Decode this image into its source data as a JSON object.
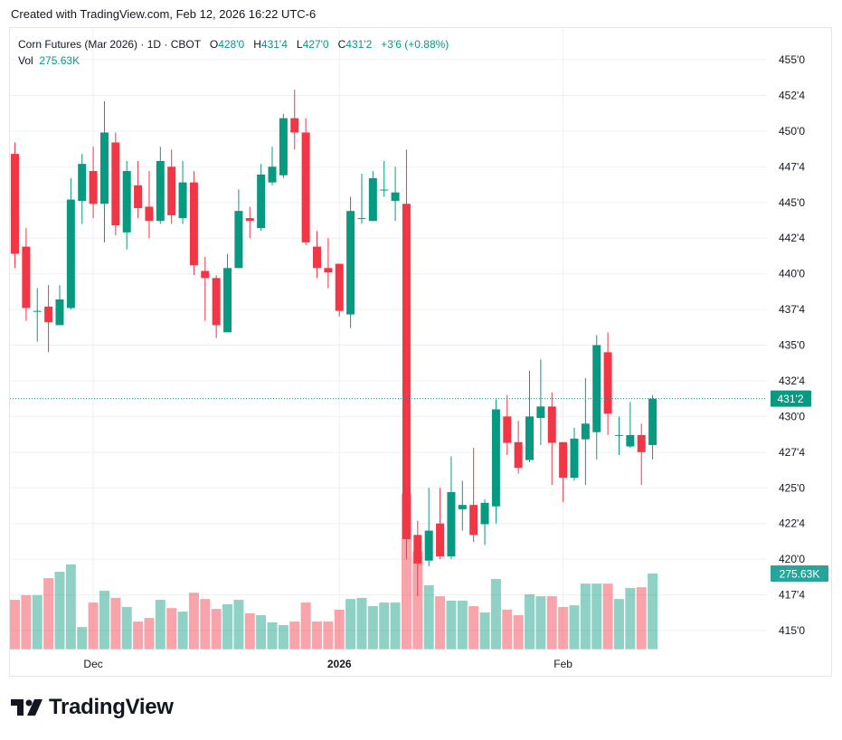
{
  "header": {
    "created": "Created with TradingView.com, Feb 12, 2026 16:22 UTC-6"
  },
  "legend": {
    "symbol": "Corn Futures (Mar 2026) · 1D · CBOT",
    "o_label": "O",
    "o": "428'0",
    "h_label": "H",
    "h": "431'4",
    "l_label": "L",
    "l": "427'0",
    "c_label": "C",
    "c": "431'2",
    "change": "+3'6 (+0.88%)",
    "vol_label": "Vol",
    "vol": "275.63K"
  },
  "logo": {
    "text": "TradingView"
  },
  "colors": {
    "up": "#089981",
    "down": "#F23645",
    "vol_up": "rgba(8,153,129,0.45)",
    "vol_down": "rgba(242,54,69,0.45)",
    "grid": "#f0f3fa"
  },
  "chart_data": {
    "type": "candlestick",
    "title": "Corn Futures (Mar 2026) · 1D · CBOT",
    "ylim": [
      415,
      455
    ],
    "y_ticks": [
      {
        "value": 455,
        "label": "455'0"
      },
      {
        "value": 452.5,
        "label": "452'4"
      },
      {
        "value": 450,
        "label": "450'0"
      },
      {
        "value": 447.5,
        "label": "447'4"
      },
      {
        "value": 445,
        "label": "445'0"
      },
      {
        "value": 442.5,
        "label": "442'4"
      },
      {
        "value": 440,
        "label": "440'0"
      },
      {
        "value": 437.5,
        "label": "437'4"
      },
      {
        "value": 435,
        "label": "435'0"
      },
      {
        "value": 432.5,
        "label": "432'4"
      },
      {
        "value": 430,
        "label": "430'0"
      },
      {
        "value": 427.5,
        "label": "427'4"
      },
      {
        "value": 425,
        "label": "425'0"
      },
      {
        "value": 422.5,
        "label": "422'4"
      },
      {
        "value": 420,
        "label": "420'0"
      },
      {
        "value": 417.5,
        "label": "417'4"
      },
      {
        "value": 415,
        "label": "415'0"
      }
    ],
    "x_ticks": [
      {
        "index": 7,
        "label": "Dec",
        "bold": false
      },
      {
        "index": 29,
        "label": "2026",
        "bold": true
      },
      {
        "index": 49,
        "label": "Feb",
        "bold": false
      }
    ],
    "last_price": {
      "value": 431.25,
      "label": "431'2"
    },
    "last_volume": {
      "value": 275.63,
      "label": "275.63K"
    },
    "volume_unit": "K",
    "candles": [
      [
        448.4,
        449.2,
        440.4,
        441.4,
        180
      ],
      [
        441.9,
        443.2,
        436.7,
        437.6,
        197
      ],
      [
        437.4,
        439.0,
        435.25,
        437.4,
        197
      ],
      [
        437.7,
        439.2,
        434.5,
        436.6,
        259
      ],
      [
        436.4,
        439.2,
        436.4,
        438.2,
        282
      ],
      [
        437.6,
        446.7,
        437.5,
        445.2,
        309
      ],
      [
        445.1,
        448.4,
        443.5,
        447.7,
        81
      ],
      [
        447.2,
        448.9,
        443.9,
        444.9,
        170
      ],
      [
        444.9,
        452.1,
        442.2,
        449.9,
        213
      ],
      [
        449.2,
        449.9,
        442.7,
        443.4,
        187
      ],
      [
        442.9,
        447.9,
        441.7,
        447.2,
        154
      ],
      [
        446.2,
        447.9,
        443.9,
        444.6,
        101
      ],
      [
        444.7,
        447.2,
        442.5,
        443.7,
        114
      ],
      [
        443.7,
        448.9,
        443.5,
        447.9,
        180
      ],
      [
        447.5,
        448.7,
        443.5,
        444.1,
        150
      ],
      [
        443.9,
        447.9,
        443.5,
        446.4,
        137
      ],
      [
        446.4,
        447.2,
        439.9,
        440.6,
        206
      ],
      [
        440.2,
        441.2,
        436.7,
        439.7,
        183
      ],
      [
        439.7,
        439.9,
        435.5,
        436.4,
        147
      ],
      [
        435.9,
        441.4,
        435.9,
        440.4,
        164
      ],
      [
        440.4,
        445.9,
        440.4,
        444.4,
        180
      ],
      [
        443.9,
        444.7,
        442.5,
        443.7,
        131
      ],
      [
        443.2,
        447.7,
        443.0,
        446.95,
        124
      ],
      [
        446.4,
        448.9,
        446.2,
        447.5,
        98
      ],
      [
        446.9,
        451.2,
        446.7,
        450.9,
        88
      ],
      [
        450.9,
        452.9,
        448.7,
        449.9,
        101
      ],
      [
        449.9,
        450.9,
        442.0,
        442.2,
        170
      ],
      [
        441.9,
        443.0,
        439.7,
        440.4,
        101
      ],
      [
        440.4,
        442.5,
        439.0,
        440.1,
        101
      ],
      [
        440.7,
        440.7,
        437.0,
        437.4,
        144
      ],
      [
        437.15,
        445.4,
        436.2,
        444.4,
        183
      ],
      [
        443.9,
        447.0,
        443.5,
        443.9,
        187
      ],
      [
        443.7,
        447.2,
        443.7,
        446.7,
        157
      ],
      [
        445.9,
        447.9,
        445.4,
        445.9,
        170
      ],
      [
        445.1,
        447.5,
        443.7,
        445.7,
        170
      ],
      [
        444.9,
        448.7,
        420.0,
        421.4,
        566
      ],
      [
        421.7,
        422.7,
        417.4,
        419.7,
        356
      ],
      [
        419.9,
        425.0,
        419.5,
        422.0,
        233
      ],
      [
        422.5,
        425.0,
        420.0,
        420.2,
        193
      ],
      [
        420.2,
        427.2,
        420.0,
        424.7,
        177
      ],
      [
        423.5,
        425.5,
        422.0,
        423.8,
        177
      ],
      [
        423.8,
        427.8,
        421.2,
        421.7,
        157
      ],
      [
        422.45,
        424.2,
        421.0,
        423.95,
        134
      ],
      [
        423.7,
        431.2,
        422.5,
        430.5,
        256
      ],
      [
        430.0,
        431.5,
        427.3,
        428.15,
        144
      ],
      [
        428.2,
        429.7,
        426.0,
        426.4,
        124
      ],
      [
        426.95,
        433.2,
        426.8,
        430.0,
        200
      ],
      [
        429.9,
        434.0,
        428.0,
        430.7,
        193
      ],
      [
        430.7,
        431.7,
        425.2,
        428.15,
        193
      ],
      [
        428.2,
        428.2,
        424.0,
        425.7,
        154
      ],
      [
        425.7,
        429.2,
        425.5,
        428.45,
        160
      ],
      [
        428.4,
        432.7,
        425.2,
        429.5,
        239
      ],
      [
        428.9,
        435.7,
        427.0,
        435.0,
        239
      ],
      [
        434.5,
        435.9,
        428.7,
        430.2,
        239
      ],
      [
        428.7,
        430.0,
        427.3,
        428.7,
        183
      ],
      [
        427.9,
        431.0,
        427.8,
        428.7,
        223
      ],
      [
        428.7,
        429.5,
        425.2,
        427.5,
        226
      ],
      [
        428.0,
        431.5,
        427.0,
        431.25,
        275.63
      ]
    ]
  }
}
